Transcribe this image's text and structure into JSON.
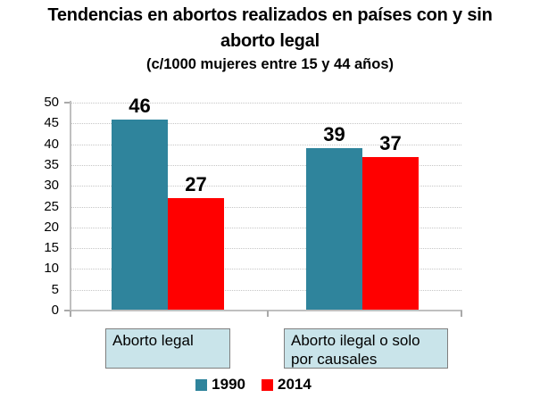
{
  "chart_data": {
    "type": "bar",
    "title": "Tendencias en abortos realizados en países con y sin aborto legal",
    "title_lines": [
      "Tendencias en abortos realizados en países con y sin",
      "aborto legal"
    ],
    "subtitle": "(c/1000 mujeres entre 15 y 44 años)",
    "categories": [
      "Aborto legal",
      "Aborto ilegal o solo\npor causales"
    ],
    "series": [
      {
        "name": "1990",
        "color": "#2F849C",
        "values": [
          46,
          39
        ]
      },
      {
        "name": "2014",
        "color": "#FF0000",
        "values": [
          27,
          37
        ]
      }
    ],
    "ylim": [
      0,
      50
    ],
    "ytick_step": 5,
    "grid": "horizontal-dotted",
    "legend_position": "bottom",
    "xlabel": "",
    "ylabel": ""
  },
  "styles": {
    "series_1990_color": "#2F849C",
    "series_2014_color": "#FF0000",
    "category_box_fill": "#C9E4EA",
    "category_box_border": "#7F7F7F",
    "gridline_color": "#C6C6C6",
    "axis_color": "#BFBFBF",
    "text_color": "#000000",
    "background": "#FFFFFF"
  }
}
